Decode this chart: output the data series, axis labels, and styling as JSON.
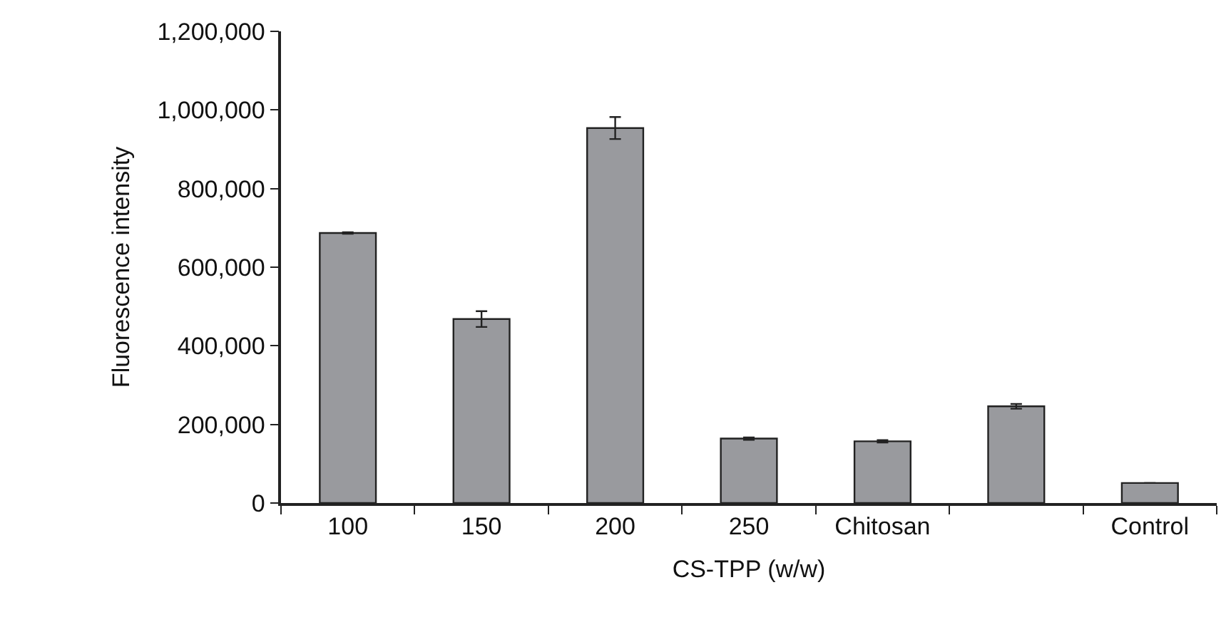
{
  "chart_data": {
    "type": "bar",
    "xlabel": "CS-TPP (w/w)",
    "ylabel": "Fluorescence intensity",
    "categories": [
      "100",
      "150",
      "200",
      "250",
      "Chitosan",
      null,
      "Control"
    ],
    "values": [
      687000,
      468000,
      954000,
      164000,
      157000,
      246000,
      51000
    ],
    "errors": [
      2000,
      20000,
      28000,
      3000,
      3000,
      6000,
      null
    ],
    "color": "#999a9e",
    "ylim": [
      0,
      1200000
    ],
    "yticks": [
      0,
      {
        "value": 200000,
        "label": "200,000"
      },
      {
        "value": 400000,
        "label": "400,000"
      },
      {
        "value": 600000,
        "label": "600,000"
      },
      {
        "value": 800000,
        "label": "800,000"
      },
      {
        "value": 1000000,
        "label": "1,000,000"
      },
      {
        "value": 1200000,
        "label": "1,200,000"
      }
    ],
    "line_style": "solid"
  }
}
